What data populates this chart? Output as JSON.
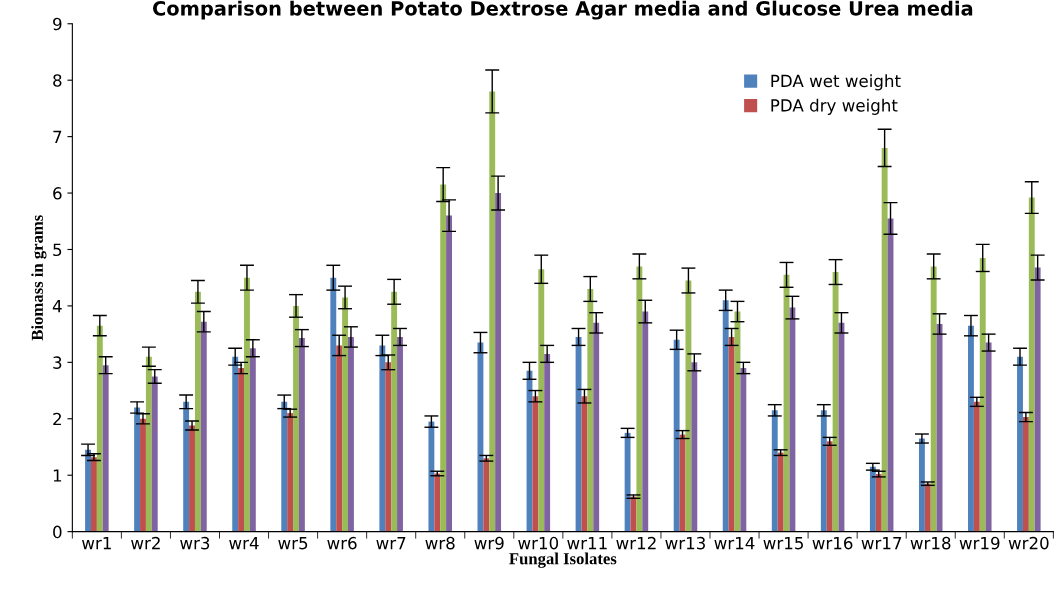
{
  "chart_data": {
    "type": "bar",
    "title": "Comparison between Potato Dextrose Agar media and Glucose Urea media",
    "xlabel": "Fungal Isolates",
    "ylabel": "Biomass in grams",
    "categories": [
      "wr1",
      "wr2",
      "wr3",
      "wr4",
      "wr5",
      "wr6",
      "wr7",
      "wr8",
      "wr9",
      "wr10",
      "wr11",
      "wr12",
      "wr13",
      "wr14",
      "wr15",
      "wr16",
      "wr17",
      "wr18",
      "wr19",
      "wr20"
    ],
    "series": [
      {
        "name": "PDA wet weight",
        "color": "#4f81bd",
        "values": [
          1.45,
          2.2,
          2.3,
          3.1,
          2.3,
          4.5,
          3.3,
          1.95,
          3.35,
          2.85,
          3.45,
          1.75,
          3.4,
          4.1,
          2.15,
          2.15,
          1.15,
          1.65,
          3.65,
          3.1
        ],
        "errors": [
          0.1,
          0.1,
          0.12,
          0.15,
          0.12,
          0.22,
          0.18,
          0.1,
          0.18,
          0.15,
          0.15,
          0.08,
          0.17,
          0.18,
          0.1,
          0.1,
          0.06,
          0.08,
          0.18,
          0.15
        ]
      },
      {
        "name": "PDA dry weight",
        "color": "#c0504d",
        "values": [
          1.32,
          2.0,
          1.88,
          2.9,
          2.1,
          3.3,
          3.0,
          1.03,
          1.3,
          2.4,
          2.4,
          0.62,
          1.72,
          3.45,
          1.4,
          1.6,
          1.02,
          0.85,
          2.3,
          2.03
        ],
        "errors": [
          0.06,
          0.09,
          0.08,
          0.1,
          0.07,
          0.18,
          0.13,
          0.04,
          0.05,
          0.1,
          0.12,
          0.03,
          0.07,
          0.15,
          0.05,
          0.07,
          0.05,
          0.03,
          0.08,
          0.08
        ]
      },
      {
        "color": "#9bbb59",
        "values": [
          3.65,
          3.1,
          4.25,
          4.5,
          4.0,
          4.15,
          4.25,
          6.15,
          7.8,
          4.65,
          4.3,
          4.7,
          4.45,
          3.9,
          4.55,
          4.6,
          6.8,
          4.7,
          4.85,
          5.92
        ],
        "errors": [
          0.18,
          0.17,
          0.2,
          0.22,
          0.2,
          0.2,
          0.22,
          0.3,
          0.38,
          0.25,
          0.22,
          0.22,
          0.22,
          0.18,
          0.22,
          0.22,
          0.33,
          0.22,
          0.24,
          0.28
        ]
      },
      {
        "color": "#8064a2",
        "values": [
          2.95,
          2.75,
          3.72,
          3.25,
          3.43,
          3.45,
          3.45,
          5.6,
          6.0,
          3.15,
          3.7,
          3.9,
          3.0,
          2.9,
          3.97,
          3.7,
          5.55,
          3.68,
          3.35,
          4.68
        ],
        "errors": [
          0.15,
          0.12,
          0.18,
          0.15,
          0.15,
          0.18,
          0.15,
          0.28,
          0.3,
          0.15,
          0.18,
          0.2,
          0.15,
          0.1,
          0.2,
          0.18,
          0.28,
          0.18,
          0.15,
          0.22
        ]
      }
    ],
    "ylim": [
      0,
      9
    ],
    "yticks": [
      0,
      1,
      2,
      3,
      4,
      5,
      6,
      7,
      8,
      9
    ],
    "grid": false,
    "legend": "top right"
  }
}
